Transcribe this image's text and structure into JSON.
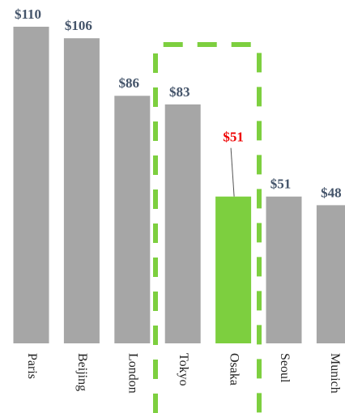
{
  "chart_data": {
    "type": "bar",
    "categories": [
      "Paris",
      "Beijing",
      "London",
      "Tokyo",
      "Osaka",
      "Seoul",
      "Munich"
    ],
    "values": [
      110,
      106,
      86,
      83,
      51,
      51,
      48
    ],
    "value_labels": [
      "$110",
      "$106",
      "$86",
      "$83",
      "$51",
      "$51",
      "$48"
    ],
    "colors": [
      "#a6a6a6",
      "#a6a6a6",
      "#a6a6a6",
      "#a6a6a6",
      "#7dcf3f",
      "#a6a6a6",
      "#a6a6a6"
    ],
    "label_colors": [
      "#44546a",
      "#44546a",
      "#44546a",
      "#44546a",
      "#ee0000",
      "#44546a",
      "#44546a"
    ]
  }
}
